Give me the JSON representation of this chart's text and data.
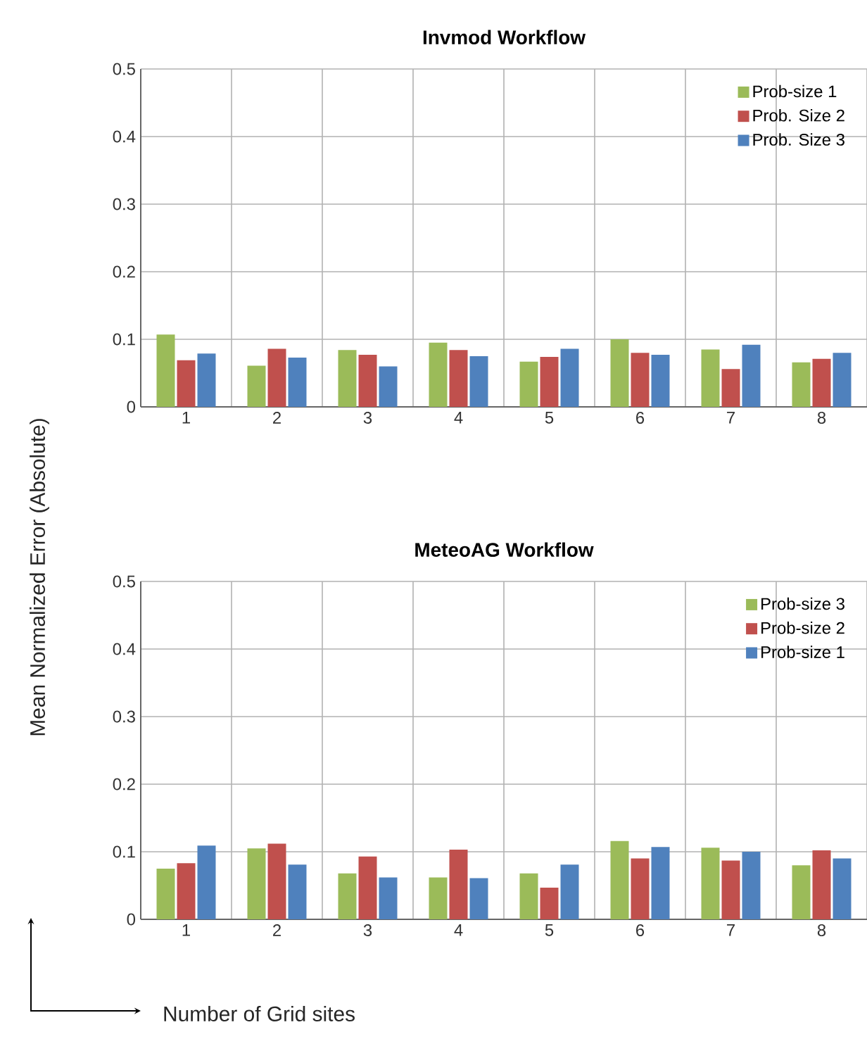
{
  "chart_data": [
    {
      "type": "bar",
      "title": "Invmod Workflow",
      "categories": [
        "1",
        "2",
        "3",
        "4",
        "5",
        "6",
        "7",
        "8"
      ],
      "ylim": [
        0,
        0.5
      ],
      "yticks": [
        0,
        0.1,
        0.2,
        0.3,
        0.4,
        0.5
      ],
      "grid": true,
      "legend": "top right",
      "series": [
        {
          "name": "Prob-size 1",
          "color": "#9bbb59",
          "values": [
            0.107,
            0.061,
            0.084,
            0.095,
            0.067,
            0.1,
            0.085,
            0.066
          ]
        },
        {
          "name": "Prob. Size 2",
          "color": "#c0504d",
          "values": [
            0.069,
            0.086,
            0.077,
            0.084,
            0.074,
            0.08,
            0.056,
            0.071
          ]
        },
        {
          "name": "Prob. Size 3",
          "color": "#4f81bd",
          "values": [
            0.079,
            0.073,
            0.06,
            0.075,
            0.086,
            0.077,
            0.092,
            0.08
          ]
        }
      ]
    },
    {
      "type": "bar",
      "title": "MeteoAG Workflow",
      "xlabel": "Number of Grid sites",
      "ylabel": "Mean Normalized Error (Absolute)",
      "categories": [
        "1",
        "2",
        "3",
        "4",
        "5",
        "6",
        "7",
        "8"
      ],
      "ylim": [
        0,
        0.5
      ],
      "yticks": [
        0,
        0.1,
        0.2,
        0.3,
        0.4,
        0.5
      ],
      "grid": true,
      "legend": "top right",
      "series": [
        {
          "name": "Prob-size 3",
          "color": "#9bbb59",
          "values": [
            0.075,
            0.105,
            0.068,
            0.062,
            0.068,
            0.116,
            0.106,
            0.08
          ]
        },
        {
          "name": "Prob-size 2",
          "color": "#c0504d",
          "values": [
            0.083,
            0.112,
            0.093,
            0.103,
            0.047,
            0.09,
            0.087,
            0.102
          ]
        },
        {
          "name": "Prob-size 1",
          "color": "#4f81bd",
          "values": [
            0.109,
            0.081,
            0.062,
            0.061,
            0.081,
            0.107,
            0.1,
            0.09
          ]
        }
      ]
    }
  ]
}
